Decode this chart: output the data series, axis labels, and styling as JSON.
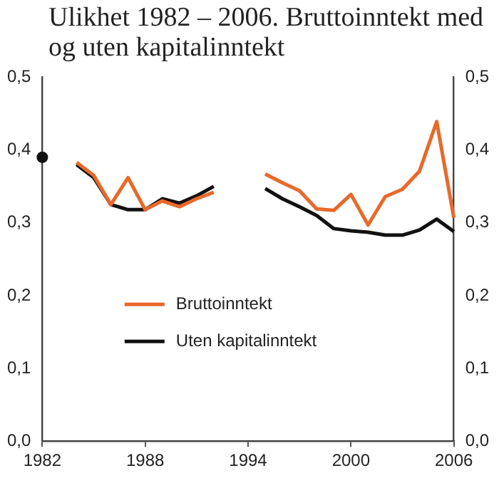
{
  "chart_data": {
    "type": "line",
    "title": "Ulikhet 1982 – 2006. Bruttoinntekt med og uten kapitalinntekt",
    "x": [
      1982,
      1983,
      1984,
      1985,
      1986,
      1987,
      1988,
      1989,
      1990,
      1991,
      1992,
      1993,
      1994,
      1995,
      1996,
      1997,
      1998,
      1999,
      2000,
      2001,
      2002,
      2003,
      2004,
      2005,
      2006
    ],
    "series": [
      {
        "name": "Bruttoinntekt",
        "color": "#e8692a",
        "values": [
          null,
          null,
          0.383,
          0.365,
          0.325,
          0.362,
          0.318,
          0.33,
          0.322,
          0.333,
          0.342,
          null,
          null,
          0.367,
          0.355,
          0.344,
          0.319,
          0.317,
          0.339,
          0.297,
          0.336,
          0.346,
          0.371,
          0.439,
          0.307
        ]
      },
      {
        "name": "Uten kapitalinntekt",
        "color": "#111111",
        "values": [
          0.39,
          null,
          0.38,
          0.362,
          0.325,
          0.318,
          0.318,
          0.333,
          0.327,
          0.337,
          0.35,
          null,
          null,
          0.347,
          0.333,
          0.322,
          0.31,
          0.292,
          0.289,
          0.287,
          0.283,
          0.283,
          0.29,
          0.305,
          0.288
        ]
      }
    ],
    "xlim": [
      1982,
      2006
    ],
    "xticks": [
      1982,
      1988,
      1994,
      2000,
      2006
    ],
    "ylim": [
      0,
      0.5
    ],
    "yticks": [
      {
        "value": 0,
        "label": "0,0"
      },
      {
        "value": 0.1,
        "label": "0,1"
      },
      {
        "value": 0.2,
        "label": "0,2"
      },
      {
        "value": 0.3,
        "label": "0,3"
      },
      {
        "value": 0.4,
        "label": "0,4"
      },
      {
        "value": 0.5,
        "label": "0,5"
      }
    ],
    "y2lim": [
      0,
      0.5
    ],
    "y2ticks": [
      {
        "value": 0,
        "label": "0,0"
      },
      {
        "value": 0.1,
        "label": "0,1"
      },
      {
        "value": 0.2,
        "label": "0,2"
      },
      {
        "value": 0.3,
        "label": "0,3"
      },
      {
        "value": 0.4,
        "label": "0,4"
      },
      {
        "value": 0.5,
        "label": "0,5"
      }
    ],
    "grid": false,
    "legend": "bottom left",
    "line_style": "solid"
  }
}
